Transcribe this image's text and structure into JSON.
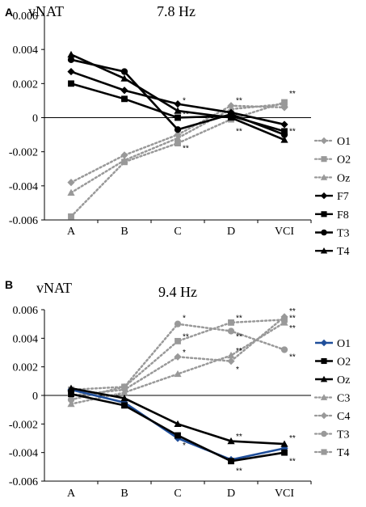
{
  "chart_data": [
    {
      "type": "line",
      "panel": "A",
      "title": "7.8 Hz",
      "ylabel": "vNAT",
      "xlabel": "",
      "categories": [
        "A",
        "B",
        "C",
        "D",
        "VCI"
      ],
      "ylim": [
        -0.006,
        0.006
      ],
      "yticks": [
        "0.006",
        "0.004",
        "0.002",
        "0",
        "-0.002",
        "-0.004",
        "-0.006"
      ],
      "legend_position": "right",
      "grid": false,
      "series": [
        {
          "name": "O1",
          "style": "dotted",
          "marker": "diamond",
          "color": "#999999",
          "values": [
            -0.0038,
            -0.0022,
            -0.001,
            0.0007,
            0.0006
          ]
        },
        {
          "name": "O2",
          "style": "dotted",
          "marker": "square",
          "color": "#999999",
          "values": [
            -0.0058,
            -0.0026,
            -0.0015,
            -0.0001,
            0.0009
          ]
        },
        {
          "name": "Oz",
          "style": "dotted",
          "marker": "triangle",
          "color": "#999999",
          "values": [
            -0.0044,
            -0.0025,
            -0.0012,
            0.0005,
            0.0008
          ]
        },
        {
          "name": "F7",
          "style": "solid",
          "marker": "diamond",
          "color": "#000000",
          "values": [
            0.0027,
            0.0016,
            0.0008,
            0.0003,
            -0.0004
          ]
        },
        {
          "name": "F8",
          "style": "solid",
          "marker": "square",
          "color": "#000000",
          "values": [
            0.002,
            0.0011,
            0.0,
            0.0001,
            -0.0008
          ]
        },
        {
          "name": "T3",
          "style": "solid",
          "marker": "circle",
          "color": "#000000",
          "values": [
            0.0034,
            0.0027,
            -0.0007,
            0.0002,
            -0.001
          ]
        },
        {
          "name": "T4",
          "style": "solid",
          "marker": "triangle",
          "color": "#000000",
          "values": [
            0.0037,
            0.0023,
            0.0004,
            0.0,
            -0.0013
          ]
        }
      ],
      "annotations": [
        {
          "x": "C",
          "y": 0.001,
          "text": "*"
        },
        {
          "x": "C",
          "y": 0.0002,
          "text": "**"
        },
        {
          "x": "C",
          "y": -0.0018,
          "text": "**"
        },
        {
          "x": "D",
          "y": 0.001,
          "text": "**"
        },
        {
          "x": "D",
          "y": -0.0008,
          "text": "**"
        },
        {
          "x": "VCI",
          "y": 0.0014,
          "text": "**"
        },
        {
          "x": "VCI",
          "y": -0.0008,
          "text": "**"
        }
      ]
    },
    {
      "type": "line",
      "panel": "B",
      "title": "9.4 Hz",
      "ylabel": "vNAT",
      "xlabel": "",
      "categories": [
        "A",
        "B",
        "C",
        "D",
        "VCI"
      ],
      "ylim": [
        -0.006,
        0.006
      ],
      "yticks": [
        "0.006",
        "0.004",
        "0.002",
        "0",
        "-0.002",
        "-0.004",
        "-0.006"
      ],
      "legend_position": "right",
      "grid": false,
      "series": [
        {
          "name": "O1",
          "style": "solid",
          "marker": "diamond",
          "color": "#1f4e9a",
          "values": [
            0.0004,
            -0.0005,
            -0.003,
            -0.0045,
            -0.0037
          ]
        },
        {
          "name": "O2",
          "style": "solid",
          "marker": "square",
          "color": "#000000",
          "values": [
            0.0001,
            -0.0007,
            -0.0028,
            -0.0046,
            -0.004
          ]
        },
        {
          "name": "Oz",
          "style": "solid",
          "marker": "triangle",
          "color": "#000000",
          "values": [
            0.0005,
            -0.0002,
            -0.002,
            -0.0032,
            -0.0034
          ]
        },
        {
          "name": "C3",
          "style": "dotted",
          "marker": "triangle",
          "color": "#999999",
          "values": [
            -0.0006,
            0.0002,
            0.0015,
            0.0028,
            0.0051
          ]
        },
        {
          "name": "C4",
          "style": "dotted",
          "marker": "diamond",
          "color": "#999999",
          "values": [
            0.0,
            0.0004,
            0.0027,
            0.0024,
            0.0055
          ]
        },
        {
          "name": "T3",
          "style": "dotted",
          "marker": "circle",
          "color": "#999999",
          "values": [
            -0.0003,
            0.0006,
            0.005,
            0.0045,
            0.0032
          ]
        },
        {
          "name": "T4",
          "style": "dotted",
          "marker": "square",
          "color": "#999999",
          "values": [
            0.0004,
            0.0006,
            0.0038,
            0.0051,
            0.0053
          ]
        }
      ],
      "annotations": [
        {
          "x": "C",
          "y": 0.0054,
          "text": "*"
        },
        {
          "x": "C",
          "y": 0.0041,
          "text": "**"
        },
        {
          "x": "C",
          "y": 0.003,
          "text": "*"
        },
        {
          "x": "C",
          "y": -0.0035,
          "text": "*"
        },
        {
          "x": "D",
          "y": 0.0054,
          "text": "**"
        },
        {
          "x": "D",
          "y": 0.0041,
          "text": "**"
        },
        {
          "x": "D",
          "y": 0.0031,
          "text": "**"
        },
        {
          "x": "D",
          "y": 0.0018,
          "text": "*"
        },
        {
          "x": "D",
          "y": -0.0029,
          "text": "**"
        },
        {
          "x": "D",
          "y": -0.0053,
          "text": "**"
        },
        {
          "x": "VCI",
          "y": 0.0059,
          "text": "**"
        },
        {
          "x": "VCI",
          "y": 0.0054,
          "text": "**"
        },
        {
          "x": "VCI",
          "y": 0.0047,
          "text": "**"
        },
        {
          "x": "VCI",
          "y": 0.0027,
          "text": "**"
        },
        {
          "x": "VCI",
          "y": -0.003,
          "text": "**"
        },
        {
          "x": "VCI",
          "y": -0.0046,
          "text": "**"
        }
      ]
    }
  ]
}
